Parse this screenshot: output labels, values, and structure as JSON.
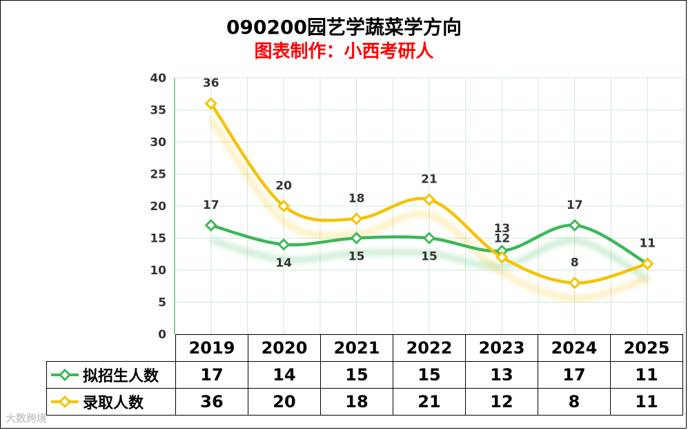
{
  "chart_data": {
    "type": "line",
    "title": "090200园艺学蔬菜学方向",
    "subtitle": "图表制作：小西考研人",
    "categories": [
      "2019",
      "2020",
      "2021",
      "2022",
      "2023",
      "2024",
      "2025"
    ],
    "ylim": [
      0,
      40
    ],
    "yticks": [
      0,
      5,
      10,
      15,
      20,
      25,
      30,
      35,
      40
    ],
    "yticks_text": [
      "0",
      "5",
      "10",
      "15",
      "20",
      "25",
      "30",
      "35",
      "40"
    ],
    "grid": true,
    "series": [
      {
        "name": "拟招生人数",
        "values": [
          17,
          14,
          15,
          15,
          13,
          17,
          11
        ],
        "color": "#3cb85a",
        "labels": [
          "17",
          "14",
          "15",
          "15",
          "13",
          "17",
          "11"
        ]
      },
      {
        "name": "录取人数",
        "values": [
          36,
          20,
          18,
          21,
          12,
          8,
          11
        ],
        "color": "#f5c200",
        "labels": [
          "36",
          "20",
          "18",
          "21",
          "12",
          "8",
          "11"
        ]
      }
    ]
  },
  "watermark": "大数跨境"
}
